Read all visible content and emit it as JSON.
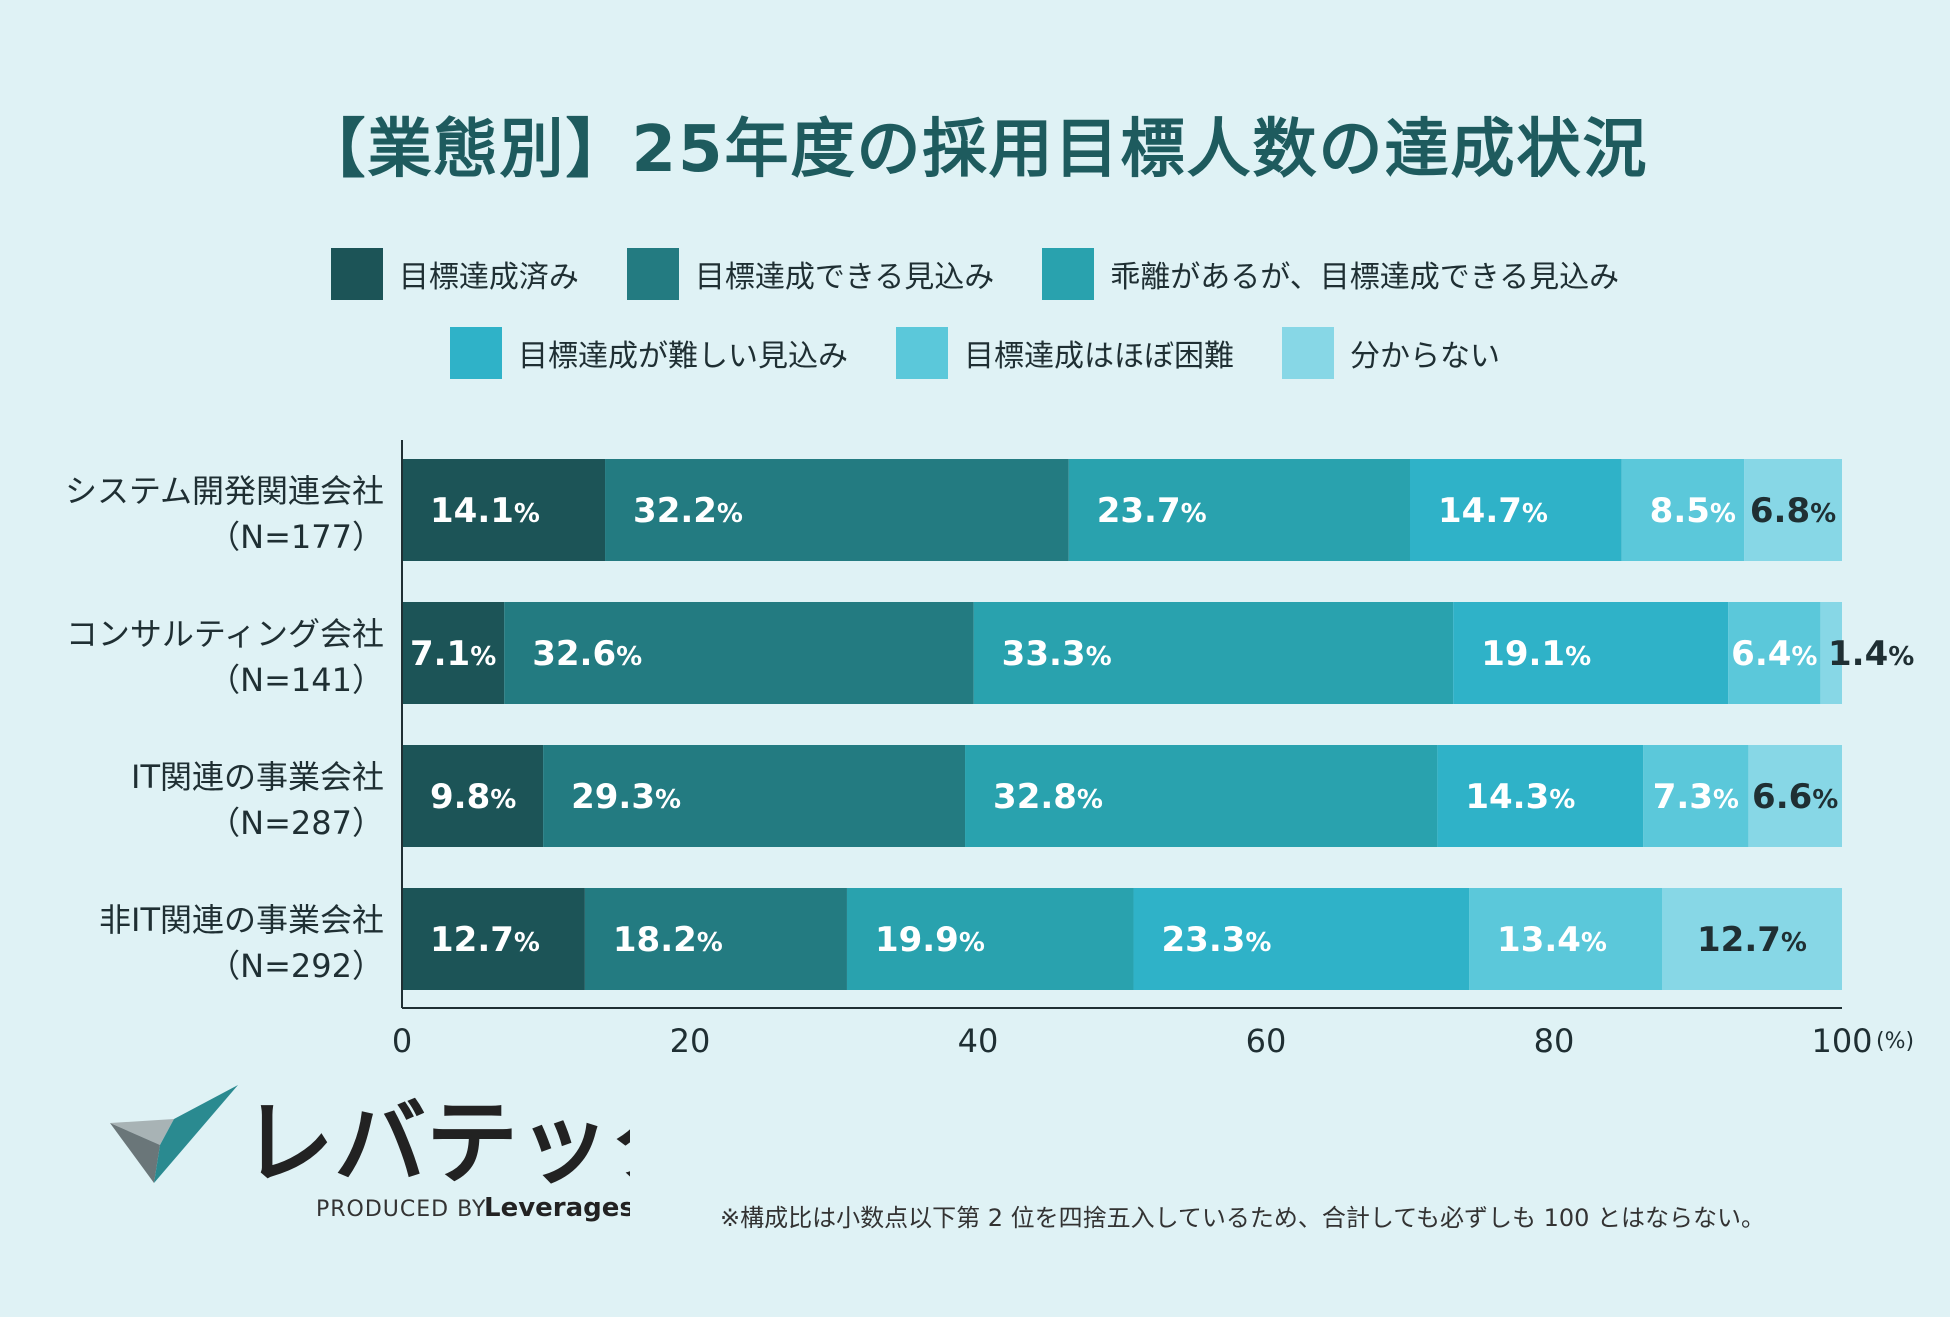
{
  "chart_data": {
    "type": "stacked-bar-horizontal",
    "title": "【業態別】25年度の採用目標人数の達成状況",
    "legend": [
      {
        "label": "目標達成済み",
        "color": "#1c5457"
      },
      {
        "label": "目標達成できる見込み",
        "color": "#237b81"
      },
      {
        "label": "乖離があるが、目標達成できる見込み",
        "color": "#29a2ae"
      },
      {
        "label": "目標達成が難しい見込み",
        "color": "#2fb2c8"
      },
      {
        "label": "目標達成はほぼ困難",
        "color": "#5bc8da"
      },
      {
        "label": "分からない",
        "color": "#87d7e6"
      }
    ],
    "rows": [
      {
        "name": "システム開発関連会社",
        "n": "（N=177）",
        "values": [
          14.1,
          32.2,
          23.7,
          14.7,
          8.5,
          6.8
        ]
      },
      {
        "name": "コンサルティング会社",
        "n": "（N=141）",
        "values": [
          7.1,
          32.6,
          33.3,
          19.1,
          6.4,
          1.4
        ]
      },
      {
        "name": "IT関連の事業会社",
        "n": "（N=287）",
        "values": [
          9.8,
          29.3,
          32.8,
          14.3,
          7.3,
          6.6
        ]
      },
      {
        "name": "非IT関連の事業会社",
        "n": "（N=292）",
        "values": [
          12.7,
          18.2,
          19.9,
          23.3,
          13.4,
          12.7
        ]
      }
    ],
    "xlim": [
      0,
      100
    ],
    "xticks": [
      "0",
      "20",
      "40",
      "60",
      "80",
      "100"
    ],
    "xunit": "(%)",
    "percent_sign": "%"
  },
  "legend_rows": [
    [
      0,
      1,
      2
    ],
    [
      3,
      4,
      5
    ]
  ],
  "logo": {
    "brand": "レバテック",
    "produced_by": "PRODUCED BY",
    "company": "Leverages"
  },
  "footnote": "※構成比は小数点以下第 2 位を四捨五入しているため、合計しても必ずしも 100 とはならない。",
  "colors": {
    "background": "#dff2f5",
    "title": "#1e5b5e",
    "axis": "#1f2f33"
  }
}
